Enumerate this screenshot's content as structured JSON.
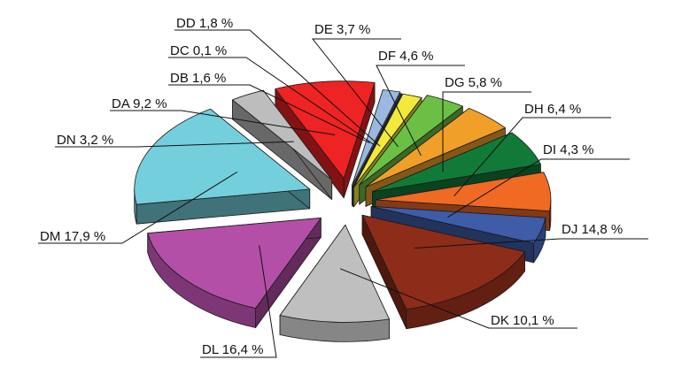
{
  "chart_data": {
    "type": "pie",
    "style": "exploded 3D pie",
    "legend": "none",
    "categories": [
      "DA",
      "DB",
      "DC",
      "DD",
      "DE",
      "DF",
      "DG",
      "DH",
      "DI",
      "DJ",
      "DK",
      "DL",
      "DM",
      "DN"
    ],
    "values": [
      9.2,
      1.6,
      0.1,
      1.8,
      3.7,
      4.6,
      5.8,
      6.4,
      4.3,
      14.8,
      10.1,
      16.4,
      17.9,
      3.2
    ],
    "labels": [
      "DA 9,2 %",
      "DB 1,6 %",
      "DC 0,1 %",
      "DD 1,8 %",
      "DE 3,7 %",
      "DF 4,6 %",
      "DG 5,8 %",
      "DH 6,4 %",
      "DI 4,3 %",
      "DJ 14,8 %",
      "DK 10,1 %",
      "DL 16,4 %",
      "DM 17,9 %",
      "DN 3,2 %"
    ],
    "colors": [
      "#ee2323",
      "#9ab8e0",
      "#4a6a8a",
      "#f2ea3a",
      "#6cbf45",
      "#f0a028",
      "#127a38",
      "#f06a24",
      "#3e5ca8",
      "#8e2c1a",
      "#bfbfbf",
      "#b44fa8",
      "#74cfdc",
      "#bdbdbd"
    ]
  }
}
